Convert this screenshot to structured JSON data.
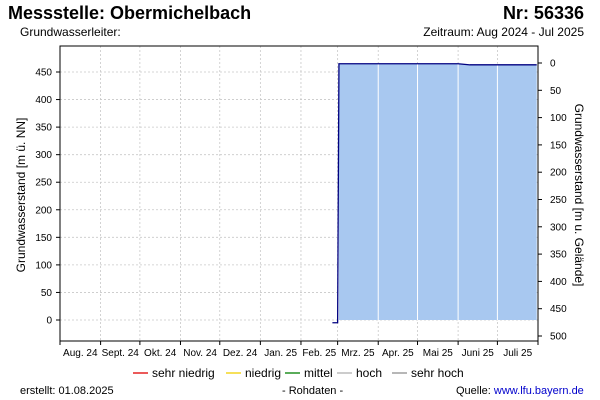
{
  "header": {
    "title": "Messstelle: Obermichelbach",
    "number": "Nr: 56336",
    "aquifer": "Grundwasserleiter:",
    "period": "Zeitraum: Aug 2024 - Jul 2025"
  },
  "footer": {
    "created": "erstellt:  01.08.2025",
    "raw": "- Rohdaten -",
    "source_label": "Quelle: ",
    "source_link": "www.lfu.bayern.de"
  },
  "colors": {
    "area_fill": "#a8c8f0",
    "line": "#000080",
    "grid": "#c8c8c8",
    "axis": "#000000"
  },
  "chart_data": {
    "type": "area",
    "x_categories": [
      "Aug. 24",
      "Sept. 24",
      "Okt. 24",
      "Nov. 24",
      "Dez. 24",
      "Jan. 25",
      "Feb. 25",
      "Mrz. 25",
      "Apr. 25",
      "Mai 25",
      "Juni 25",
      "Juli 25"
    ],
    "y_left": {
      "label": "Grundwasserstand [m ü. NN]",
      "ticks": [
        0,
        50,
        100,
        150,
        200,
        250,
        300,
        350,
        400,
        450
      ],
      "range": [
        -25,
        490
      ]
    },
    "y_right": {
      "label": "Grundwasserstand [m u. Gelände]",
      "ticks": [
        0,
        50,
        100,
        150,
        200,
        250,
        300,
        350,
        400,
        450,
        500
      ]
    },
    "grid": true,
    "series": [
      {
        "data": [
          {
            "date": "2025-02-25",
            "y": -5
          },
          {
            "date": "2025-03-01",
            "y": -5
          },
          {
            "date": "2025-03-02",
            "y": 465
          },
          {
            "date": "2025-06-01",
            "y": 465
          },
          {
            "date": "2025-06-10",
            "y": 463
          },
          {
            "date": "2025-07-31",
            "y": 463
          }
        ]
      }
    ],
    "legend": {
      "placement": "bottom",
      "entries": [
        {
          "name": "sehr niedrig",
          "color": "#e00000"
        },
        {
          "name": "niedrig",
          "color": "#f0d000"
        },
        {
          "name": "mittel",
          "color": "#008000"
        },
        {
          "name": "hoch",
          "color": "#b0b0b0"
        },
        {
          "name": "sehr hoch",
          "color": "#909090"
        }
      ]
    }
  }
}
